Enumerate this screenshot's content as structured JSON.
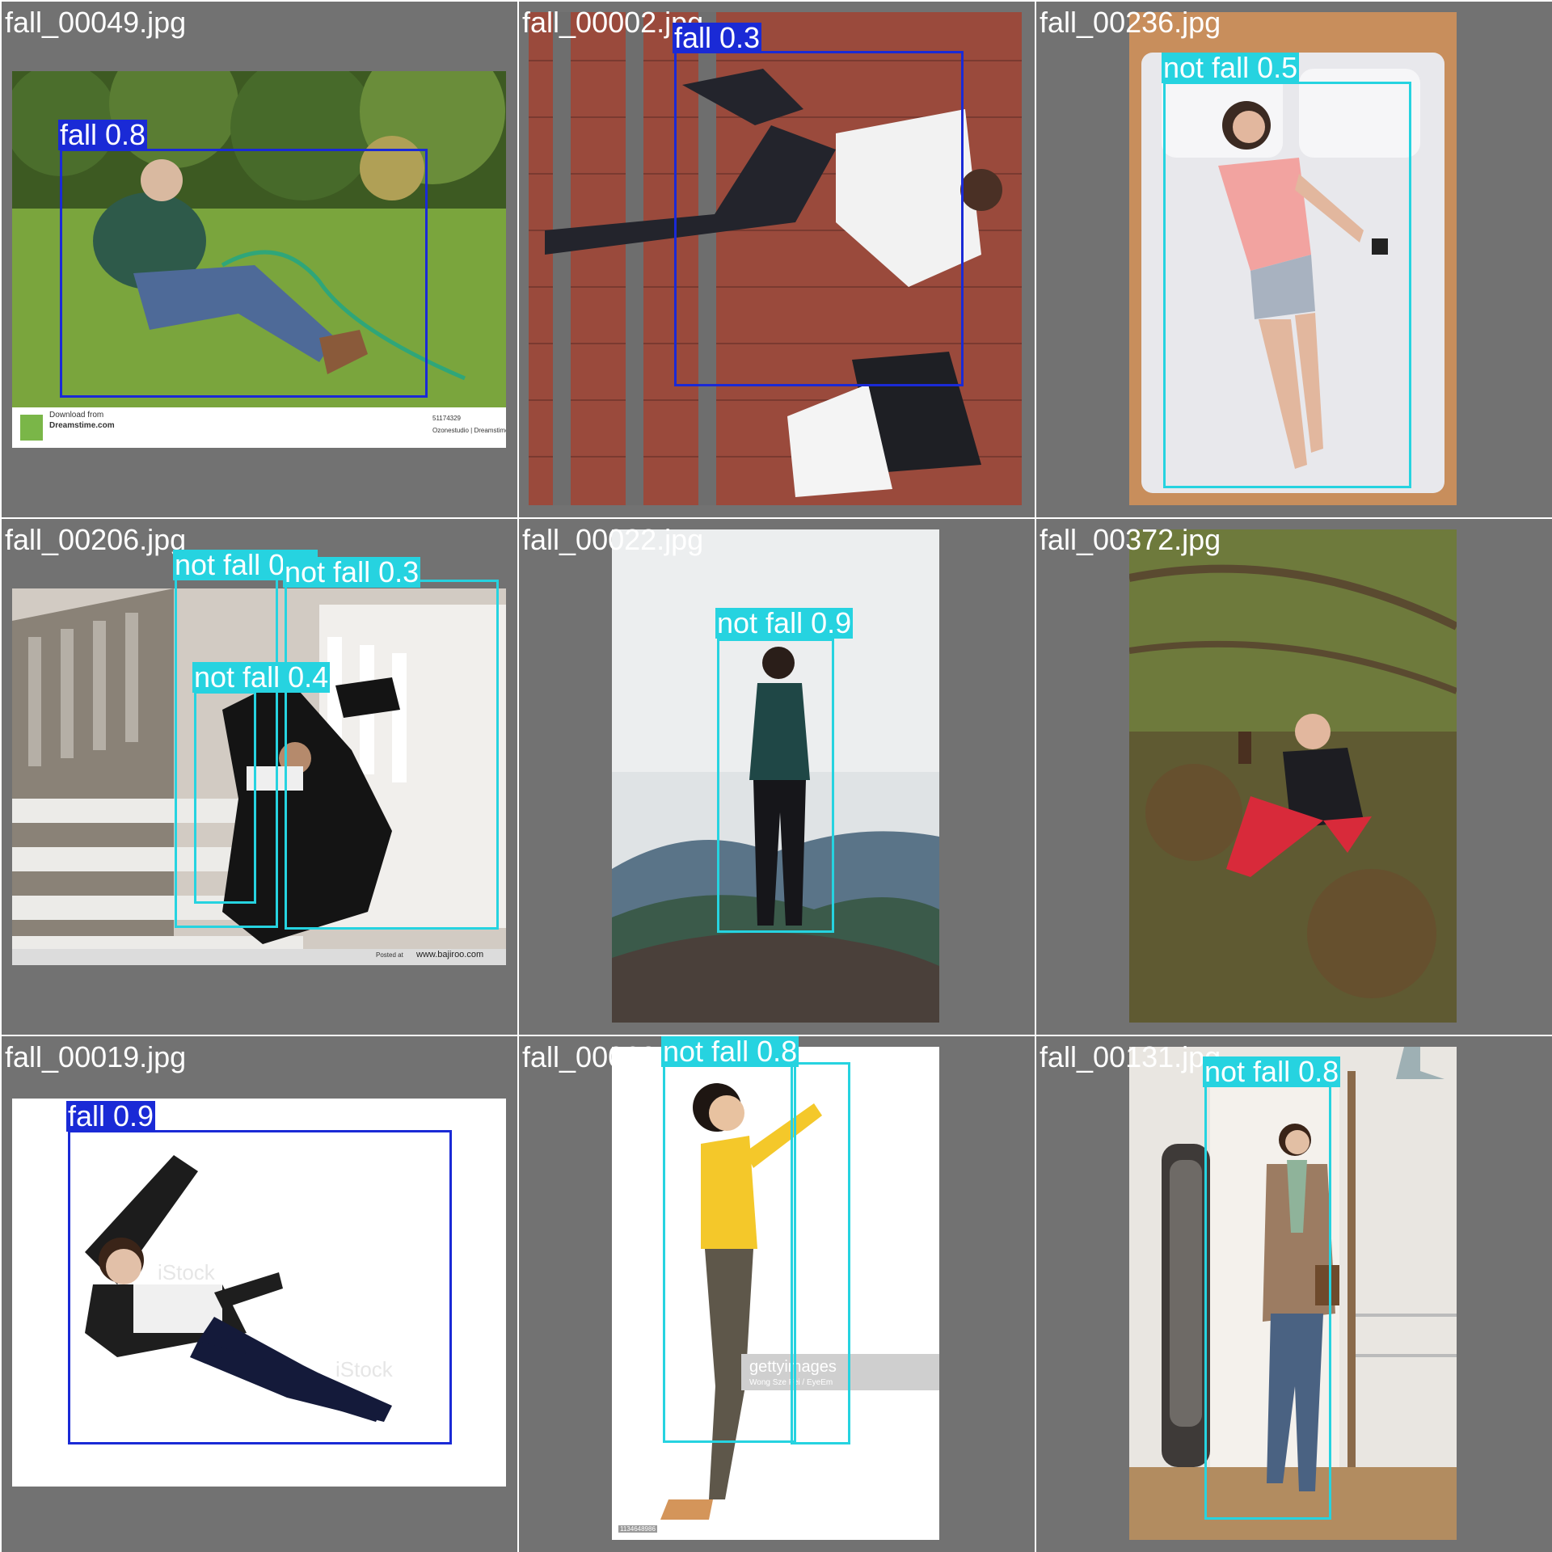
{
  "colors": {
    "background": "#727272",
    "fall": "#1a2ad6",
    "not_fall": "#26d3e0",
    "label_text": "#ffffff"
  },
  "tiles": [
    {
      "file": "fall_00049.jpg",
      "detections": [
        {
          "label": "fall 0.8",
          "class": "fall"
        }
      ],
      "scene": "man-sitting-on-grass",
      "watermark": {
        "line1": "Download from",
        "line2": "Dreamstime.com",
        "id": "51174329",
        "credit": "Ozonestudio | Dreamstime.com"
      }
    },
    {
      "file": "fall_00002.jpg",
      "detections": [
        {
          "label": "fall 0.3",
          "class": "fall"
        }
      ],
      "scene": "man-falling-on-stairs-top-view"
    },
    {
      "file": "fall_00236.jpg",
      "detections": [
        {
          "label": "not fall 0.5",
          "class": "not-fall"
        }
      ],
      "scene": "woman-lying-on-bed"
    },
    {
      "file": "fall_00206.jpg",
      "detections": [
        {
          "label": "not fall 0.",
          "class": "not-fall"
        },
        {
          "label": "not fall 0.3",
          "class": "not-fall"
        },
        {
          "label": "not fall 0.4",
          "class": "not-fall"
        }
      ],
      "scene": "man-falling-down-stairs",
      "watermark": {
        "credit": "www.bajiroo.com",
        "posted": "Posted at"
      }
    },
    {
      "file": "fall_00022.jpg",
      "detections": [
        {
          "label": "not fall 0.9",
          "class": "not-fall"
        }
      ],
      "scene": "man-standing-on-rock"
    },
    {
      "file": "fall_00372.jpg",
      "detections": [],
      "scene": "man-falling-on-grass-hill"
    },
    {
      "file": "fall_00019.jpg",
      "detections": [
        {
          "label": "fall 0.9",
          "class": "fall"
        }
      ],
      "scene": "man-falling-white-background",
      "watermark": {
        "brand": "iStock"
      }
    },
    {
      "file": "fall_00062.jpg",
      "detections": [
        {
          "label": "not fall 0.8",
          "class": "not-fall"
        },
        {
          "label": "",
          "class": "not-fall"
        }
      ],
      "scene": "woman-reaching-up",
      "watermark": {
        "brand": "gettyimages",
        "credit": "Wong Sze Fei / EyeEm",
        "id": "1134648986"
      }
    },
    {
      "file": "fall_00131.jpg",
      "detections": [
        {
          "label": "not fall 0.8",
          "class": "not-fall"
        }
      ],
      "scene": "woman-walking-through-door"
    }
  ]
}
